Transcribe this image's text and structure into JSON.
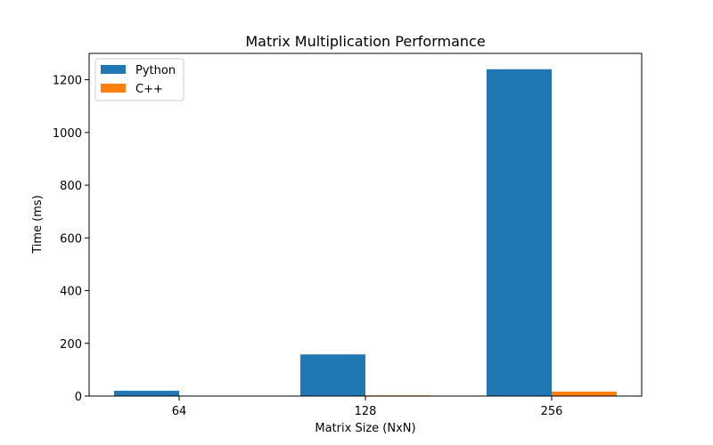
{
  "chart_data": {
    "type": "bar",
    "title": "Matrix Multiplication Performance",
    "xlabel": "Matrix Size (NxN)",
    "ylabel": "Time (ms)",
    "categories": [
      "64",
      "128",
      "256"
    ],
    "series": [
      {
        "name": "Python",
        "color": "#1f77b4",
        "values": [
          20,
          158,
          1240
        ]
      },
      {
        "name": "C++",
        "color": "#ff7f0e",
        "values": [
          0.3,
          2.5,
          17
        ]
      }
    ],
    "ylim": [
      0,
      1300
    ],
    "yticks": [
      0,
      200,
      400,
      600,
      800,
      1000,
      1200
    ],
    "ytick_labels": [
      "0",
      "200",
      "400",
      "600",
      "800",
      "1000",
      "1200"
    ],
    "grid": false,
    "legend_position": "top-left"
  }
}
